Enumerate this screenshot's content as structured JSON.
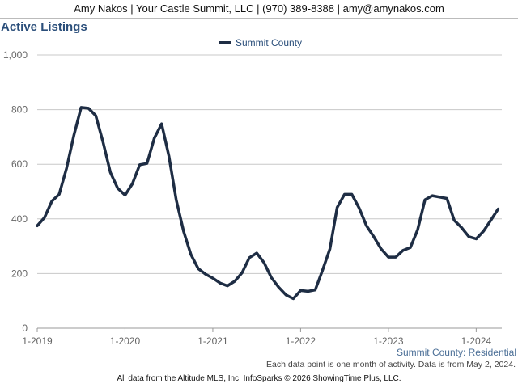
{
  "header": {
    "contact": "Amy Nakos | Your Castle Summit, LLC | (970) 389-8388 | amy@amynakos.com"
  },
  "chart_data": {
    "type": "line",
    "title": "Active Listings",
    "series": [
      {
        "name": "Summit County",
        "color": "#1e2d44",
        "start_index": 0,
        "values": [
          375,
          405,
          465,
          490,
          585,
          705,
          808,
          805,
          778,
          680,
          570,
          512,
          487,
          528,
          598,
          603,
          695,
          748,
          630,
          470,
          355,
          270,
          218,
          198,
          183,
          165,
          155,
          172,
          203,
          258,
          275,
          240,
          185,
          150,
          122,
          108,
          138,
          135,
          140,
          212,
          290,
          442,
          490,
          490,
          440,
          375,
          335,
          290,
          260,
          260,
          285,
          295,
          360,
          470,
          485,
          480,
          475,
          395,
          368,
          335,
          327,
          355,
          395,
          436
        ]
      }
    ],
    "x_ticks": [
      "1-2019",
      "1-2020",
      "1-2021",
      "1-2022",
      "1-2023",
      "1-2024"
    ],
    "x_tick_index": [
      0,
      12,
      24,
      36,
      48,
      60
    ],
    "x_range": [
      0,
      63.5
    ],
    "y_ticks": [
      "0",
      "200",
      "400",
      "600",
      "800",
      "1,000"
    ],
    "ylim": [
      0,
      1000
    ],
    "grid": true,
    "legend_position": "top-center"
  },
  "subtitle": "Summit County: Residential",
  "note": "Each data point is one month of activity. Data is from May 2, 2024.",
  "footer": "All data from the Altitude MLS, Inc. InfoSparks © 2026 ShowingTime Plus, LLC."
}
